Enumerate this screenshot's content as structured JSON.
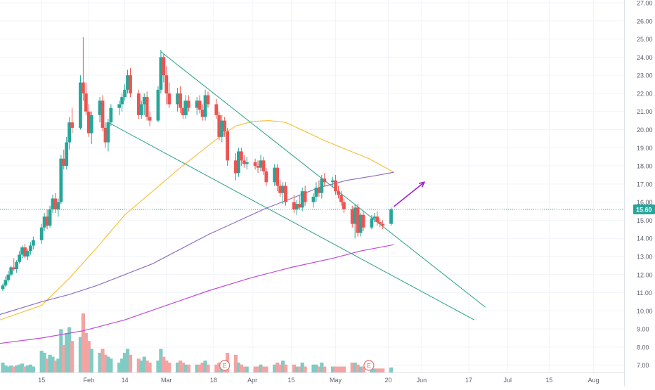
{
  "chart_data": {
    "type": "candlestick",
    "symbol_price": "15.60",
    "y_axis": {
      "ticks": [
        "7.00",
        "8.00",
        "9.00",
        "10.00",
        "11.00",
        "12.00",
        "13.00",
        "14.00",
        "15.00",
        "16.00",
        "17.00",
        "18.00",
        "19.00",
        "20.00",
        "21.00",
        "22.00",
        "23.00",
        "24.00",
        "25.00",
        "26.00",
        "27.00"
      ],
      "min": 6.6,
      "max": 27.0
    },
    "x_axis": {
      "ticks": [
        {
          "label": "15",
          "day": 0
        },
        {
          "label": "Feb",
          "day": 17
        },
        {
          "label": "14",
          "day": 30
        },
        {
          "label": "Mar",
          "day": 45
        },
        {
          "label": "18",
          "day": 62
        },
        {
          "label": "Apr",
          "day": 76
        },
        {
          "label": "15",
          "day": 90
        },
        {
          "label": "May",
          "day": 106
        },
        {
          "label": "20",
          "day": 125
        },
        {
          "label": "Jun",
          "day": 137
        },
        {
          "label": "17",
          "day": 154
        },
        {
          "label": "Jul",
          "day": 168
        },
        {
          "label": "15",
          "day": 183
        },
        {
          "label": "Aug",
          "day": 199
        }
      ],
      "min": -15,
      "max": 210
    },
    "current_price": 15.6,
    "candles": [
      [
        -14,
        11.2,
        11.5,
        11.1,
        11.4
      ],
      [
        -13,
        11.4,
        11.9,
        11.3,
        11.7
      ],
      [
        -12,
        11.7,
        12.2,
        11.6,
        12.0
      ],
      [
        -11,
        12.0,
        12.5,
        11.9,
        12.4
      ],
      [
        -10,
        12.4,
        12.9,
        12.2,
        12.3
      ],
      [
        -9,
        12.3,
        12.8,
        12.1,
        12.7
      ],
      [
        -8,
        12.7,
        13.3,
        12.6,
        13.1
      ],
      [
        -7,
        13.1,
        13.6,
        12.9,
        13.5
      ],
      [
        -6,
        13.5,
        13.7,
        12.9,
        13.0
      ],
      [
        -5,
        13.0,
        13.4,
        12.8,
        13.3
      ],
      [
        -4,
        13.3,
        13.8,
        13.1,
        13.6
      ],
      [
        -3,
        13.6,
        14.1,
        13.4,
        13.9
      ],
      [
        0,
        13.9,
        14.8,
        13.7,
        14.6
      ],
      [
        1,
        14.6,
        15.4,
        14.4,
        15.2
      ],
      [
        2,
        15.2,
        15.6,
        14.5,
        14.7
      ],
      [
        3,
        14.7,
        15.8,
        14.6,
        15.6
      ],
      [
        4,
        15.6,
        16.4,
        15.4,
        16.2
      ],
      [
        5,
        16.2,
        16.5,
        15.4,
        15.6
      ],
      [
        6,
        15.6,
        16.2,
        15.2,
        16.0
      ],
      [
        7,
        16.0,
        18.6,
        15.9,
        18.4
      ],
      [
        8,
        18.4,
        18.9,
        17.8,
        18.0
      ],
      [
        9,
        18.0,
        19.6,
        17.8,
        19.3
      ],
      [
        10,
        19.3,
        20.7,
        18.9,
        20.4
      ],
      [
        11,
        20.4,
        21.2,
        19.8,
        20.1
      ],
      [
        14,
        20.1,
        23.0,
        20.0,
        22.6
      ],
      [
        15,
        22.6,
        25.1,
        21.6,
        22.0
      ],
      [
        16,
        22.0,
        22.6,
        20.8,
        21.0
      ],
      [
        17,
        21.0,
        21.4,
        19.6,
        19.8
      ],
      [
        18,
        19.8,
        21.0,
        19.2,
        20.8
      ],
      [
        21,
        20.8,
        21.8,
        20.4,
        21.6
      ],
      [
        22,
        21.6,
        21.9,
        19.9,
        20.1
      ],
      [
        23,
        20.1,
        20.4,
        19.0,
        19.3
      ],
      [
        24,
        19.3,
        20.6,
        18.8,
        20.4
      ],
      [
        25,
        20.4,
        21.4,
        20.2,
        21.2
      ],
      [
        28,
        21.2,
        21.6,
        20.8,
        21.4
      ],
      [
        29,
        21.4,
        22.0,
        21.0,
        21.8
      ],
      [
        30,
        21.8,
        22.5,
        21.6,
        22.2
      ],
      [
        31,
        22.2,
        23.3,
        22.0,
        23.0
      ],
      [
        32,
        23.0,
        23.4,
        21.8,
        22.0
      ],
      [
        35,
        22.0,
        22.2,
        20.6,
        20.8
      ],
      [
        36,
        20.8,
        21.6,
        20.6,
        21.4
      ],
      [
        37,
        21.4,
        22.0,
        20.8,
        21.8
      ],
      [
        38,
        21.8,
        22.1,
        20.5,
        20.7
      ],
      [
        39,
        20.7,
        21.0,
        20.2,
        20.5
      ],
      [
        42,
        20.5,
        22.4,
        20.4,
        22.2
      ],
      [
        43,
        22.2,
        24.4,
        22.0,
        24.0
      ],
      [
        44,
        24.0,
        24.2,
        22.6,
        23.0
      ],
      [
        45,
        23.0,
        23.5,
        21.4,
        22.0
      ],
      [
        46,
        22.0,
        22.6,
        21.2,
        21.4
      ],
      [
        49,
        21.4,
        22.3,
        21.0,
        22.0
      ],
      [
        50,
        22.0,
        22.4,
        20.9,
        21.2
      ],
      [
        51,
        21.2,
        21.6,
        20.6,
        20.8
      ],
      [
        52,
        20.8,
        21.9,
        20.6,
        21.6
      ],
      [
        53,
        21.6,
        21.9,
        21.0,
        21.2
      ],
      [
        56,
        21.2,
        21.8,
        20.8,
        21.6
      ],
      [
        57,
        21.6,
        21.9,
        20.9,
        21.1
      ],
      [
        58,
        21.1,
        21.4,
        20.5,
        20.7
      ],
      [
        59,
        20.7,
        22.2,
        20.5,
        21.9
      ],
      [
        60,
        21.9,
        22.1,
        21.2,
        21.4
      ],
      [
        63,
        21.4,
        21.7,
        20.6,
        20.8
      ],
      [
        64,
        20.8,
        21.0,
        19.4,
        19.6
      ],
      [
        65,
        19.6,
        20.8,
        19.3,
        20.5
      ],
      [
        66,
        20.5,
        20.7,
        19.6,
        19.9
      ],
      [
        67,
        19.9,
        20.1,
        18.0,
        18.3
      ],
      [
        70,
        18.3,
        18.7,
        17.2,
        17.6
      ],
      [
        71,
        17.6,
        19.0,
        17.4,
        18.8
      ],
      [
        72,
        18.8,
        19.0,
        18.0,
        18.3
      ],
      [
        73,
        18.3,
        18.6,
        17.9,
        18.1
      ],
      [
        74,
        18.1,
        18.5,
        17.8,
        18.2
      ],
      [
        77,
        18.2,
        18.4,
        17.8,
        18.0
      ],
      [
        78,
        18.0,
        18.3,
        17.6,
        17.9
      ],
      [
        79,
        17.9,
        18.6,
        17.7,
        18.3
      ],
      [
        80,
        18.3,
        18.5,
        17.5,
        17.7
      ],
      [
        81,
        17.7,
        17.9,
        16.9,
        17.1
      ],
      [
        84,
        17.1,
        18.1,
        16.9,
        17.9
      ],
      [
        85,
        17.9,
        18.1,
        16.6,
        16.9
      ],
      [
        86,
        16.9,
        17.2,
        16.3,
        16.5
      ],
      [
        87,
        16.5,
        17.1,
        15.9,
        16.9
      ],
      [
        88,
        16.9,
        17.1,
        15.8,
        16.0
      ],
      [
        91,
        16.0,
        16.4,
        15.4,
        15.6
      ],
      [
        92,
        15.6,
        16.1,
        15.3,
        15.9
      ],
      [
        93,
        15.9,
        16.4,
        15.6,
        15.7
      ],
      [
        94,
        15.7,
        16.8,
        15.5,
        16.6
      ],
      [
        95,
        16.6,
        16.9,
        15.8,
        16.0
      ],
      [
        98,
        16.0,
        16.5,
        15.7,
        16.3
      ],
      [
        99,
        16.3,
        17.1,
        16.0,
        16.8
      ],
      [
        100,
        16.8,
        17.2,
        16.3,
        16.5
      ],
      [
        101,
        16.5,
        17.5,
        16.2,
        17.3
      ],
      [
        102,
        17.3,
        17.6,
        16.9,
        17.1
      ],
      [
        105,
        17.1,
        17.4,
        16.8,
        17.2
      ],
      [
        106,
        17.2,
        17.5,
        16.4,
        16.6
      ],
      [
        107,
        16.6,
        16.9,
        16.2,
        16.4
      ],
      [
        108,
        16.4,
        16.6,
        15.8,
        16.0
      ],
      [
        109,
        16.0,
        16.2,
        15.4,
        15.6
      ],
      [
        112,
        15.6,
        15.8,
        14.6,
        14.8
      ],
      [
        113,
        14.8,
        15.9,
        14.0,
        15.7
      ],
      [
        114,
        15.7,
        15.9,
        14.1,
        14.3
      ],
      [
        115,
        14.3,
        15.4,
        14.1,
        15.3
      ],
      [
        116,
        15.3,
        15.5,
        14.4,
        14.6
      ],
      [
        119,
        14.6,
        15.3,
        14.5,
        15.1
      ],
      [
        120,
        15.1,
        15.4,
        14.9,
        15.2
      ],
      [
        121,
        15.2,
        15.5,
        14.7,
        14.9
      ],
      [
        122,
        14.9,
        15.1,
        14.6,
        14.8
      ],
      [
        123,
        14.8,
        15.0,
        14.5,
        14.7
      ],
      [
        126,
        14.8,
        15.7,
        14.7,
        15.6
      ]
    ],
    "volume_bars": [
      [
        -14,
        0.5
      ],
      [
        -13,
        0.35
      ],
      [
        -12,
        0.3
      ],
      [
        -11,
        0.35
      ],
      [
        -10,
        0.3
      ],
      [
        -9,
        0.35
      ],
      [
        -8,
        0.4
      ],
      [
        -7,
        0.45
      ],
      [
        -6,
        0.3
      ],
      [
        -5,
        0.35
      ],
      [
        -4,
        0.4
      ],
      [
        -3,
        0.3
      ],
      [
        0,
        1.1
      ],
      [
        1,
        1.0
      ],
      [
        2,
        0.7
      ],
      [
        3,
        0.9
      ],
      [
        4,
        0.8
      ],
      [
        5,
        0.6
      ],
      [
        6,
        0.7
      ],
      [
        7,
        2.2
      ],
      [
        8,
        1.4
      ],
      [
        9,
        2.0
      ],
      [
        10,
        2.3
      ],
      [
        11,
        1.6
      ],
      [
        14,
        1.8
      ],
      [
        15,
        3.0
      ],
      [
        16,
        2.0
      ],
      [
        17,
        1.6
      ],
      [
        18,
        1.2
      ],
      [
        21,
        1.0
      ],
      [
        22,
        1.2
      ],
      [
        23,
        0.9
      ],
      [
        24,
        0.8
      ],
      [
        25,
        0.7
      ],
      [
        28,
        0.5
      ],
      [
        29,
        0.7
      ],
      [
        30,
        1.0
      ],
      [
        31,
        1.2
      ],
      [
        32,
        0.9
      ],
      [
        35,
        0.7
      ],
      [
        36,
        0.6
      ],
      [
        37,
        0.8
      ],
      [
        38,
        0.6
      ],
      [
        39,
        0.5
      ],
      [
        42,
        0.6
      ],
      [
        43,
        1.2
      ],
      [
        44,
        0.8
      ],
      [
        45,
        0.6
      ],
      [
        46,
        0.5
      ],
      [
        49,
        0.5
      ],
      [
        50,
        0.6
      ],
      [
        51,
        0.5
      ],
      [
        52,
        0.4
      ],
      [
        53,
        0.4
      ],
      [
        56,
        0.4
      ],
      [
        57,
        0.4
      ],
      [
        58,
        0.5
      ],
      [
        59,
        0.6
      ],
      [
        60,
        0.4
      ],
      [
        63,
        0.4
      ],
      [
        64,
        0.5
      ],
      [
        65,
        0.5
      ],
      [
        66,
        0.6
      ],
      [
        67,
        1.0
      ],
      [
        70,
        0.9
      ],
      [
        71,
        0.5
      ],
      [
        72,
        0.4
      ],
      [
        73,
        0.3
      ],
      [
        74,
        0.3
      ],
      [
        77,
        0.3
      ],
      [
        78,
        0.3
      ],
      [
        79,
        0.4
      ],
      [
        80,
        0.3
      ],
      [
        81,
        0.3
      ],
      [
        84,
        0.4
      ],
      [
        85,
        0.5
      ],
      [
        86,
        0.4
      ],
      [
        87,
        0.6
      ],
      [
        88,
        0.4
      ],
      [
        91,
        0.4
      ],
      [
        92,
        0.3
      ],
      [
        93,
        0.3
      ],
      [
        94,
        0.5
      ],
      [
        95,
        0.3
      ],
      [
        98,
        0.4
      ],
      [
        99,
        0.4
      ],
      [
        100,
        0.3
      ],
      [
        101,
        0.5
      ],
      [
        102,
        0.3
      ],
      [
        105,
        0.3
      ],
      [
        106,
        0.3
      ],
      [
        107,
        0.3
      ],
      [
        108,
        0.3
      ],
      [
        109,
        0.3
      ],
      [
        112,
        0.5
      ],
      [
        113,
        0.5
      ],
      [
        114,
        0.4
      ],
      [
        115,
        0.3
      ],
      [
        116,
        0.3
      ],
      [
        119,
        0.3
      ],
      [
        120,
        0.2
      ],
      [
        121,
        0.2
      ],
      [
        122,
        0.2
      ],
      [
        123,
        0.2
      ],
      [
        126,
        0.25
      ]
    ],
    "earnings_markers": [
      {
        "day": 66,
        "label": "E"
      },
      {
        "day": 118,
        "label": "E"
      }
    ],
    "moving_averages": [
      {
        "color": "#f5c242",
        "points": [
          [
            -15,
            9.5
          ],
          [
            0,
            10.3
          ],
          [
            10,
            11.8
          ],
          [
            20,
            13.5
          ],
          [
            30,
            15.3
          ],
          [
            40,
            16.6
          ],
          [
            50,
            17.9
          ],
          [
            60,
            19.1
          ],
          [
            65,
            19.7
          ],
          [
            70,
            20.2
          ],
          [
            76,
            20.45
          ],
          [
            82,
            20.5
          ],
          [
            88,
            20.4
          ],
          [
            95,
            19.9
          ],
          [
            102,
            19.4
          ],
          [
            110,
            18.9
          ],
          [
            118,
            18.4
          ],
          [
            124,
            17.9
          ],
          [
            127,
            17.65
          ]
        ]
      },
      {
        "color": "#8e6fc7",
        "points": [
          [
            -15,
            9.8
          ],
          [
            0,
            10.5
          ],
          [
            10,
            10.9
          ],
          [
            20,
            11.4
          ],
          [
            30,
            12.0
          ],
          [
            40,
            12.6
          ],
          [
            50,
            13.4
          ],
          [
            60,
            14.2
          ],
          [
            70,
            14.9
          ],
          [
            80,
            15.6
          ],
          [
            90,
            16.2
          ],
          [
            100,
            16.8
          ],
          [
            110,
            17.2
          ],
          [
            120,
            17.45
          ],
          [
            127,
            17.65
          ]
        ]
      },
      {
        "color": "#c04ad8",
        "points": [
          [
            -15,
            8.2
          ],
          [
            0,
            8.5
          ],
          [
            15,
            8.9
          ],
          [
            30,
            9.5
          ],
          [
            45,
            10.3
          ],
          [
            60,
            11.1
          ],
          [
            75,
            11.8
          ],
          [
            90,
            12.4
          ],
          [
            105,
            12.9
          ],
          [
            115,
            13.3
          ],
          [
            127,
            13.65
          ]
        ]
      }
    ],
    "trendlines": [
      {
        "color": "#3aa88f",
        "points": [
          [
            43,
            24.3
          ],
          [
            160,
            10.2
          ]
        ]
      },
      {
        "color": "#3aa88f",
        "points": [
          [
            24,
            20.4
          ],
          [
            156,
            9.5
          ]
        ]
      }
    ],
    "arrow": {
      "color": "#a020c8",
      "from": [
        127,
        15.6
      ],
      "to": [
        138,
        17.1
      ]
    },
    "colors": {
      "up": "#26a69a",
      "down": "#ef5350",
      "vol_up": "#80cbc4",
      "vol_down": "#f4a3a3",
      "price_tag": "#26a69a"
    }
  }
}
